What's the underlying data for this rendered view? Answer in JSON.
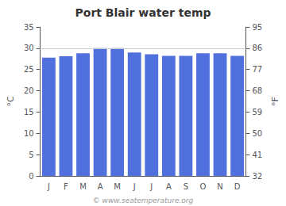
{
  "chart_data": {
    "type": "bar",
    "title": "Port Blair water temp",
    "categories": [
      "J",
      "F",
      "M",
      "A",
      "M",
      "J",
      "J",
      "A",
      "S",
      "O",
      "N",
      "D"
    ],
    "values": [
      27.8,
      28.1,
      28.8,
      30.0,
      30.0,
      29.0,
      28.6,
      28.2,
      28.2,
      28.8,
      28.8,
      28.2
    ],
    "ylabel": "°C",
    "ylim": [
      0,
      35
    ],
    "yticks": [
      0,
      5,
      10,
      15,
      20,
      25,
      30,
      35
    ],
    "y2label": "°F",
    "y2lim": [
      32,
      95
    ],
    "y2ticks": [
      32,
      41,
      50,
      59,
      68,
      77,
      86,
      95
    ],
    "reference_line": 30.0,
    "annotations": [
      "© www.seatemperature.org"
    ],
    "grid": false
  }
}
